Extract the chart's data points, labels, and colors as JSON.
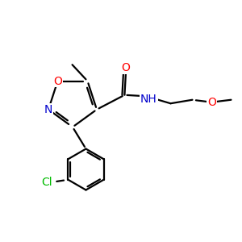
{
  "background_color": "#ffffff",
  "figsize": [
    3.0,
    3.0
  ],
  "dpi": 100,
  "atom_colors": {
    "C": "#000000",
    "N": "#0000cc",
    "O": "#ff0000",
    "Cl": "#00bb00",
    "H": "#000000"
  },
  "bond_color": "#000000",
  "bond_width": 1.6,
  "font_size_atoms": 10,
  "font_size_small": 8.5
}
